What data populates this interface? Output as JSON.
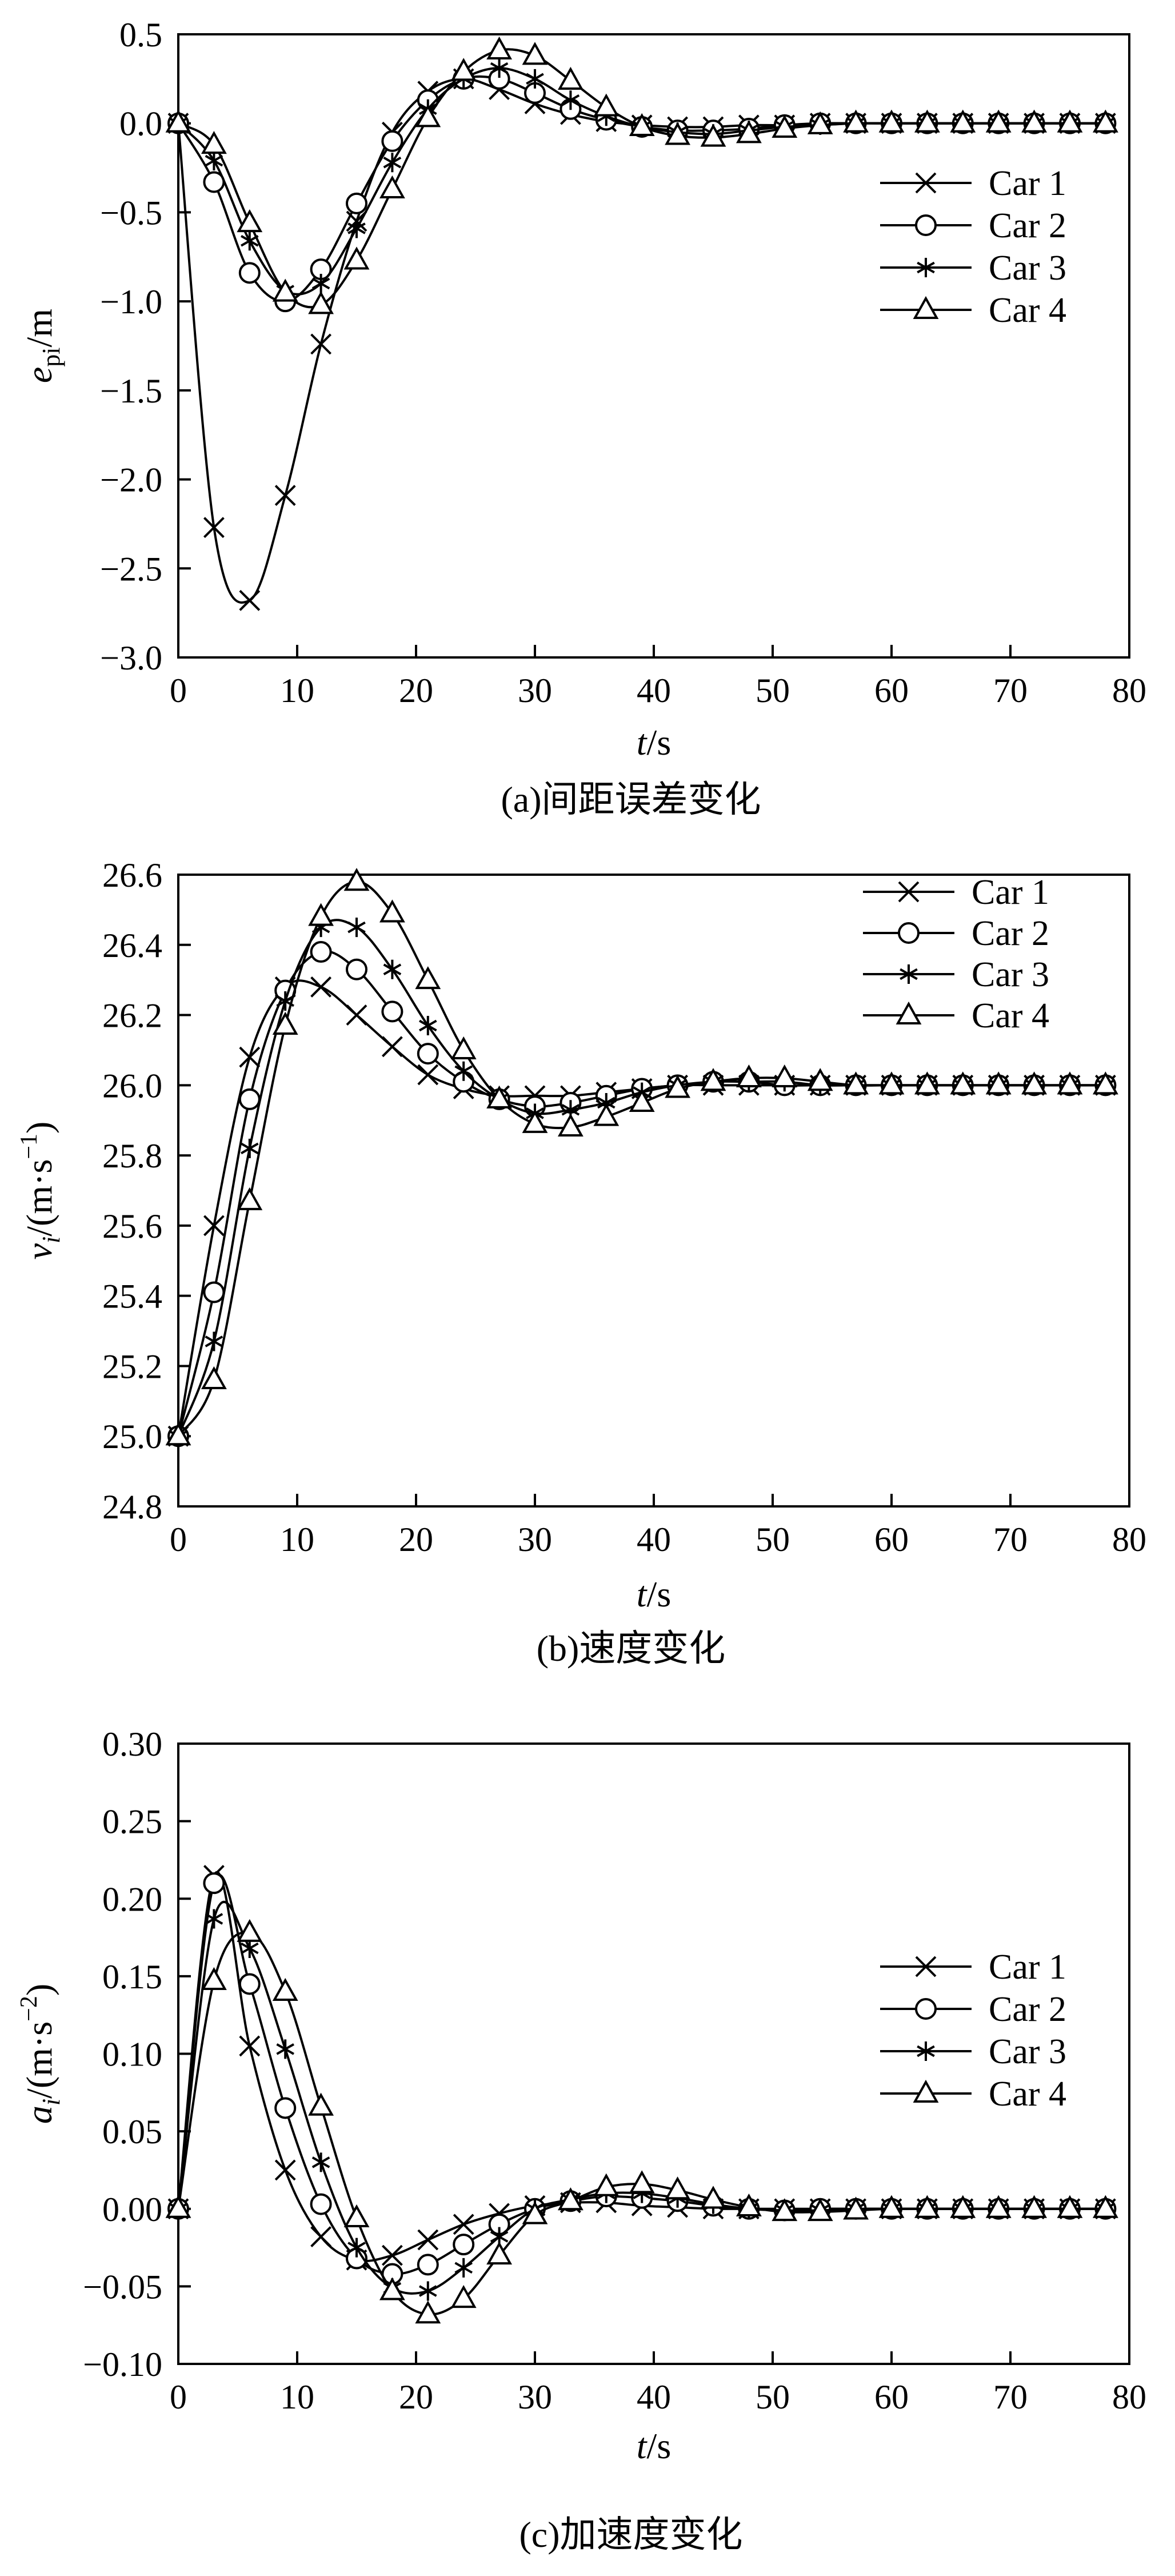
{
  "chart_data": [
    {
      "type": "line",
      "caption": "(a)间距误差变化",
      "xlabel_italic": "t",
      "xlabel_unit": "/s",
      "ylabel_italic": "e",
      "ylabel_sub": "pi",
      "ylabel_unit": "/m",
      "xlim": [
        0,
        80
      ],
      "ylim": [
        -3.0,
        0.5
      ],
      "xticks": [
        0,
        10,
        20,
        30,
        40,
        50,
        60,
        70,
        80
      ],
      "yticks": [
        -3.0,
        -2.5,
        -2.0,
        -1.5,
        -1.0,
        -0.5,
        0.0,
        0.5
      ],
      "ytick_labels": [
        "−3.0",
        "−2.5",
        "−2.0",
        "−1.5",
        "−1.0",
        "−0.5",
        "0.0",
        "0.5"
      ],
      "grid": false,
      "legend_position": "top-right",
      "marker_x": [
        0,
        3,
        6,
        9,
        12,
        15,
        18,
        21,
        24,
        27,
        30,
        33,
        36,
        39,
        42,
        45,
        48,
        51,
        54,
        57,
        60,
        63,
        66,
        69,
        72,
        75,
        78
      ],
      "series": [
        {
          "name": "Car 1",
          "marker": "x",
          "x": [
            0,
            3,
            6,
            9,
            12,
            15,
            18,
            21,
            24,
            27,
            30,
            33,
            36,
            39,
            42,
            45,
            48,
            51,
            54,
            57,
            60,
            63,
            66,
            69,
            72,
            75,
            78
          ],
          "y": [
            0.0,
            -2.27,
            -2.68,
            -2.09,
            -1.24,
            -0.55,
            -0.05,
            0.18,
            0.25,
            0.19,
            0.11,
            0.05,
            0.01,
            -0.01,
            -0.02,
            -0.02,
            -0.01,
            -0.01,
            0.0,
            0.0,
            0.0,
            0.0,
            0.0,
            0.0,
            0.0,
            0.0,
            0.0
          ]
        },
        {
          "name": "Car 2",
          "marker": "circle",
          "x": [
            0,
            3,
            6,
            9,
            12,
            15,
            18,
            21,
            24,
            27,
            30,
            33,
            36,
            39,
            42,
            45,
            48,
            51,
            54,
            57,
            60,
            63,
            66,
            69,
            72,
            75,
            78
          ],
          "y": [
            0.0,
            -0.33,
            -0.84,
            -1.0,
            -0.82,
            -0.45,
            -0.1,
            0.13,
            0.25,
            0.25,
            0.17,
            0.08,
            0.02,
            -0.02,
            -0.04,
            -0.04,
            -0.03,
            -0.01,
            0.0,
            0.0,
            0.0,
            0.0,
            0.0,
            0.0,
            0.0,
            0.0,
            0.0
          ]
        },
        {
          "name": "Car 3",
          "marker": "asterisk",
          "x": [
            0,
            3,
            6,
            9,
            12,
            15,
            18,
            21,
            24,
            27,
            30,
            33,
            36,
            39,
            42,
            45,
            48,
            51,
            54,
            57,
            60,
            63,
            66,
            69,
            72,
            75,
            78
          ],
          "y": [
            0.0,
            -0.21,
            -0.66,
            -0.94,
            -0.9,
            -0.59,
            -0.22,
            0.08,
            0.25,
            0.31,
            0.25,
            0.13,
            0.04,
            -0.02,
            -0.05,
            -0.06,
            -0.04,
            -0.02,
            -0.01,
            0.0,
            0.0,
            0.0,
            0.0,
            0.0,
            0.0,
            0.0,
            0.0
          ]
        },
        {
          "name": "Car 4",
          "marker": "triangle",
          "x": [
            0,
            3,
            6,
            9,
            12,
            15,
            18,
            21,
            24,
            27,
            30,
            33,
            36,
            39,
            42,
            45,
            48,
            51,
            54,
            57,
            60,
            63,
            66,
            69,
            72,
            75,
            78
          ],
          "y": [
            0.0,
            -0.12,
            -0.56,
            -0.95,
            -1.02,
            -0.77,
            -0.37,
            0.03,
            0.29,
            0.41,
            0.38,
            0.24,
            0.09,
            -0.02,
            -0.07,
            -0.08,
            -0.06,
            -0.03,
            -0.01,
            0.0,
            0.0,
            0.0,
            0.0,
            0.0,
            0.0,
            0.0,
            0.0
          ]
        }
      ]
    },
    {
      "type": "line",
      "caption": "(b)速度变化",
      "xlabel_italic": "t",
      "xlabel_unit": "/s",
      "ylabel_italic": "v",
      "ylabel_sub": "i",
      "ylabel_unit": "/(m·s",
      "ylabel_sup": "−1",
      "ylabel_close": ")",
      "xlim": [
        0,
        80
      ],
      "ylim": [
        24.8,
        26.6
      ],
      "xticks": [
        0,
        10,
        20,
        30,
        40,
        50,
        60,
        70,
        80
      ],
      "yticks": [
        24.8,
        25.0,
        25.2,
        25.4,
        25.6,
        25.8,
        26.0,
        26.2,
        26.4,
        26.6
      ],
      "ytick_labels": [
        "24.8",
        "25.0",
        "25.2",
        "25.4",
        "25.6",
        "25.8",
        "26.0",
        "26.2",
        "26.4",
        "26.6"
      ],
      "grid": false,
      "legend_position": "top-right",
      "series": [
        {
          "name": "Car 1",
          "marker": "x",
          "x": [
            0,
            3,
            6,
            9,
            12,
            15,
            18,
            21,
            24,
            27,
            30,
            33,
            36,
            39,
            42,
            45,
            48,
            51,
            54,
            57,
            60,
            63,
            66,
            69,
            72,
            75,
            78
          ],
          "y": [
            25.0,
            25.6,
            26.08,
            26.28,
            26.28,
            26.2,
            26.11,
            26.03,
            25.99,
            25.97,
            25.97,
            25.97,
            25.98,
            25.99,
            26.0,
            26.0,
            26.0,
            26.0,
            26.0,
            26.0,
            26.0,
            26.0,
            26.0,
            26.0,
            26.0,
            26.0,
            26.0
          ]
        },
        {
          "name": "Car 2",
          "marker": "circle",
          "x": [
            0,
            3,
            6,
            9,
            12,
            15,
            18,
            21,
            24,
            27,
            30,
            33,
            36,
            39,
            42,
            45,
            48,
            51,
            54,
            57,
            60,
            63,
            66,
            69,
            72,
            75,
            78
          ],
          "y": [
            25.0,
            25.41,
            25.96,
            26.27,
            26.38,
            26.33,
            26.21,
            26.09,
            26.01,
            25.96,
            25.94,
            25.95,
            25.97,
            25.99,
            26.0,
            26.01,
            26.01,
            26.0,
            26.0,
            26.0,
            26.0,
            26.0,
            26.0,
            26.0,
            26.0,
            26.0,
            26.0
          ]
        },
        {
          "name": "Car 3",
          "marker": "asterisk",
          "x": [
            0,
            3,
            6,
            9,
            12,
            15,
            18,
            21,
            24,
            27,
            30,
            33,
            36,
            39,
            42,
            45,
            48,
            51,
            54,
            57,
            60,
            63,
            66,
            69,
            72,
            75,
            78
          ],
          "y": [
            25.0,
            25.27,
            25.82,
            26.24,
            26.45,
            26.45,
            26.33,
            26.17,
            26.04,
            25.96,
            25.92,
            25.93,
            25.95,
            25.98,
            26.0,
            26.01,
            26.01,
            26.01,
            26.0,
            26.0,
            26.0,
            26.0,
            26.0,
            26.0,
            26.0,
            26.0,
            26.0
          ]
        },
        {
          "name": "Car 4",
          "marker": "triangle",
          "x": [
            0,
            3,
            6,
            9,
            12,
            15,
            18,
            21,
            24,
            27,
            30,
            33,
            36,
            39,
            42,
            45,
            48,
            51,
            54,
            57,
            60,
            63,
            66,
            69,
            72,
            75,
            78
          ],
          "y": [
            25.0,
            25.16,
            25.67,
            26.17,
            26.48,
            26.58,
            26.49,
            26.3,
            26.1,
            25.96,
            25.89,
            25.88,
            25.91,
            25.95,
            25.99,
            26.01,
            26.02,
            26.02,
            26.01,
            26.0,
            26.0,
            26.0,
            26.0,
            26.0,
            26.0,
            26.0,
            26.0
          ]
        }
      ]
    },
    {
      "type": "line",
      "caption": "(c)加速度变化",
      "xlabel_italic": "t",
      "xlabel_unit": "/s",
      "ylabel_italic": "a",
      "ylabel_sub": "i",
      "ylabel_unit": "/(m·s",
      "ylabel_sup": "−2",
      "ylabel_close": ")",
      "xlim": [
        0,
        80
      ],
      "ylim": [
        -0.1,
        0.3
      ],
      "xticks": [
        0,
        10,
        20,
        30,
        40,
        50,
        60,
        70,
        80
      ],
      "yticks": [
        -0.1,
        -0.05,
        0.0,
        0.05,
        0.1,
        0.15,
        0.2,
        0.25,
        0.3
      ],
      "ytick_labels": [
        "−0.10",
        "−0.05",
        "0.00",
        "0.05",
        "0.10",
        "0.15",
        "0.20",
        "0.25",
        "0.30"
      ],
      "grid": false,
      "legend_position": "right",
      "series": [
        {
          "name": "Car 1",
          "marker": "x",
          "x": [
            0,
            3,
            6,
            9,
            12,
            15,
            18,
            21,
            24,
            27,
            30,
            33,
            36,
            39,
            42,
            45,
            48,
            51,
            54,
            57,
            60,
            63,
            66,
            69,
            72,
            75,
            78
          ],
          "y": [
            0.0,
            0.215,
            0.105,
            0.025,
            -0.018,
            -0.033,
            -0.03,
            -0.02,
            -0.01,
            -0.003,
            0.002,
            0.004,
            0.004,
            0.002,
            0.001,
            0.0,
            0.0,
            0.0,
            0.0,
            0.0,
            0.0,
            0.0,
            0.0,
            0.0,
            0.0,
            0.0,
            0.0
          ]
        },
        {
          "name": "Car 2",
          "marker": "circle",
          "x": [
            0,
            3,
            6,
            9,
            12,
            15,
            18,
            21,
            24,
            27,
            30,
            33,
            36,
            39,
            42,
            45,
            48,
            51,
            54,
            57,
            60,
            63,
            66,
            69,
            72,
            75,
            78
          ],
          "y": [
            0.0,
            0.21,
            0.145,
            0.065,
            0.003,
            -0.032,
            -0.042,
            -0.036,
            -0.023,
            -0.01,
            0.0,
            0.005,
            0.008,
            0.007,
            0.005,
            0.002,
            0.0,
            -0.001,
            0.0,
            0.0,
            0.0,
            0.0,
            0.0,
            0.0,
            0.0,
            0.0,
            0.0
          ]
        },
        {
          "name": "Car 3",
          "marker": "asterisk",
          "x": [
            0,
            3,
            6,
            9,
            12,
            15,
            18,
            21,
            24,
            27,
            30,
            33,
            36,
            39,
            42,
            45,
            48,
            51,
            54,
            57,
            60,
            63,
            66,
            69,
            72,
            75,
            78
          ],
          "y": [
            0.0,
            0.187,
            0.168,
            0.103,
            0.03,
            -0.025,
            -0.051,
            -0.053,
            -0.038,
            -0.018,
            0.0,
            0.006,
            0.01,
            0.01,
            0.007,
            0.003,
            0.0,
            -0.001,
            -0.001,
            0.0,
            0.0,
            0.0,
            0.0,
            0.0,
            0.0,
            0.0,
            0.0
          ]
        },
        {
          "name": "Car 4",
          "marker": "triangle",
          "x": [
            0,
            3,
            6,
            9,
            12,
            15,
            18,
            21,
            24,
            27,
            30,
            33,
            36,
            39,
            42,
            45,
            48,
            51,
            54,
            57,
            60,
            63,
            66,
            69,
            72,
            75,
            78
          ],
          "y": [
            0.0,
            0.147,
            0.178,
            0.14,
            0.066,
            -0.006,
            -0.053,
            -0.068,
            -0.058,
            -0.03,
            -0.004,
            0.005,
            0.014,
            0.016,
            0.012,
            0.006,
            0.001,
            -0.002,
            -0.002,
            -0.001,
            0.0,
            0.0,
            0.0,
            0.0,
            0.0,
            0.0,
            0.0
          ]
        }
      ]
    }
  ]
}
